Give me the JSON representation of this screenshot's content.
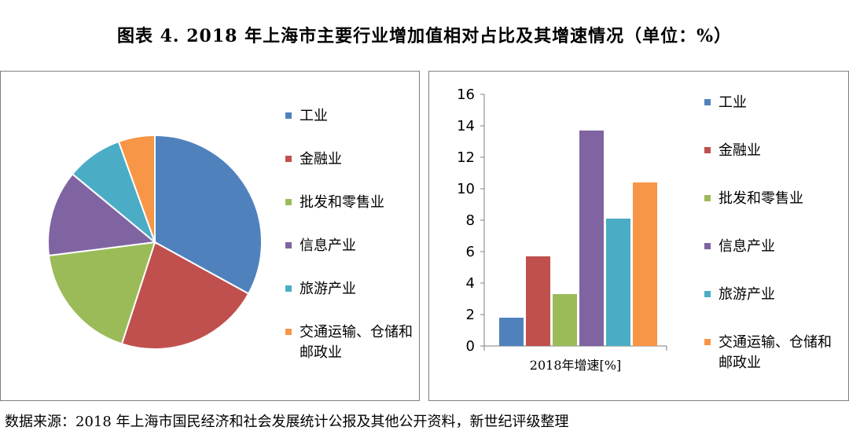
{
  "title": "图表 4. 2018 年上海市主要行业增加值相对占比及其增速情况（单位：%）",
  "footer": "数据来源：2018 年上海市国民经济和社会发展统计公报及其他公开资料，新世纪评级整理",
  "colors": [
    "#4f81bd",
    "#c0504d",
    "#9bbb59",
    "#8064a2",
    "#4bacc6",
    "#f79646"
  ],
  "chart_data": [
    {
      "type": "pie",
      "title": "",
      "categories": [
        "工业",
        "金融业",
        "批发和零售业",
        "信息产业",
        "旅游产业",
        "交通运输、仓储和邮政业"
      ],
      "values": [
        33,
        22,
        18,
        13,
        8.5,
        5.5
      ],
      "legend": "right"
    },
    {
      "type": "bar",
      "title": "",
      "categories": [
        "2018年增速[%]"
      ],
      "series": [
        {
          "name": "工业",
          "values": [
            1.8
          ]
        },
        {
          "name": "金融业",
          "values": [
            5.7
          ]
        },
        {
          "name": "批发和零售业",
          "values": [
            3.3
          ]
        },
        {
          "name": "信息产业",
          "values": [
            13.7
          ]
        },
        {
          "name": "旅游产业",
          "values": [
            8.1
          ]
        },
        {
          "name": "交通运输、仓储和邮政业",
          "values": [
            10.4
          ]
        }
      ],
      "ylim": [
        0,
        16
      ],
      "yticks": [
        0,
        2,
        4,
        6,
        8,
        10,
        12,
        14,
        16
      ],
      "legend": "right",
      "grid": false
    }
  ]
}
